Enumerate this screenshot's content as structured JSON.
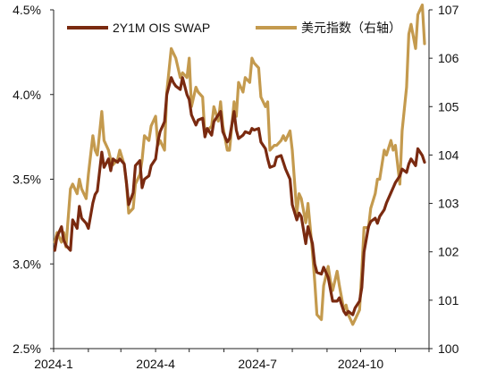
{
  "chart_data": {
    "type": "line",
    "title": "",
    "xlabel": "",
    "ylabel_left": "",
    "ylabel_right": "",
    "x_ticks": [
      "2024-1",
      "2024-4",
      "2024-7",
      "2024-10"
    ],
    "y_left_ticks": [
      "2.5%",
      "3.0%",
      "3.5%",
      "4.0%",
      "4.5%"
    ],
    "y_right_ticks": [
      "100",
      "101",
      "102",
      "103",
      "104",
      "105",
      "106",
      "107"
    ],
    "ylim_left": [
      2.5,
      4.5
    ],
    "ylim_right": [
      100,
      107
    ],
    "grid": false,
    "legend_position": "top",
    "colors": {
      "ois": "#7A2A10",
      "dxy": "#C49A4E",
      "axis": "#222222"
    },
    "series": [
      {
        "name": "2Y1M OIS SWAP",
        "axis": "left",
        "points": [
          [
            "2024-01-02",
            3.08
          ],
          [
            "2024-01-04",
            3.16
          ],
          [
            "2024-01-08",
            3.22
          ],
          [
            "2024-01-10",
            3.14
          ],
          [
            "2024-01-12",
            3.11
          ],
          [
            "2024-01-16",
            3.08
          ],
          [
            "2024-01-18",
            3.26
          ],
          [
            "2024-01-22",
            3.21
          ],
          [
            "2024-01-24",
            3.34
          ],
          [
            "2024-01-26",
            3.27
          ],
          [
            "2024-01-30",
            3.24
          ],
          [
            "2024-02-01",
            3.21
          ],
          [
            "2024-02-05",
            3.36
          ],
          [
            "2024-02-07",
            3.41
          ],
          [
            "2024-02-09",
            3.43
          ],
          [
            "2024-02-13",
            3.66
          ],
          [
            "2024-02-15",
            3.57
          ],
          [
            "2024-02-19",
            3.62
          ],
          [
            "2024-02-21",
            3.55
          ],
          [
            "2024-02-23",
            3.62
          ],
          [
            "2024-02-27",
            3.6
          ],
          [
            "2024-02-29",
            3.62
          ],
          [
            "2024-03-04",
            3.59
          ],
          [
            "2024-03-06",
            3.48
          ],
          [
            "2024-03-08",
            3.35
          ],
          [
            "2024-03-12",
            3.42
          ],
          [
            "2024-03-14",
            3.58
          ],
          [
            "2024-03-18",
            3.61
          ],
          [
            "2024-03-20",
            3.45
          ],
          [
            "2024-03-22",
            3.5
          ],
          [
            "2024-03-26",
            3.52
          ],
          [
            "2024-03-28",
            3.58
          ],
          [
            "2024-04-01",
            3.62
          ],
          [
            "2024-04-03",
            3.72
          ],
          [
            "2024-04-05",
            3.78
          ],
          [
            "2024-04-09",
            3.84
          ],
          [
            "2024-04-11",
            4.0
          ],
          [
            "2024-04-15",
            4.1
          ],
          [
            "2024-04-17",
            4.07
          ],
          [
            "2024-04-19",
            4.05
          ],
          [
            "2024-04-23",
            4.03
          ],
          [
            "2024-04-25",
            4.1
          ],
          [
            "2024-04-29",
            4.0
          ],
          [
            "2024-05-01",
            3.97
          ],
          [
            "2024-05-03",
            3.88
          ],
          [
            "2024-05-07",
            3.82
          ],
          [
            "2024-05-09",
            3.85
          ],
          [
            "2024-05-13",
            3.86
          ],
          [
            "2024-05-15",
            3.75
          ],
          [
            "2024-05-17",
            3.8
          ],
          [
            "2024-05-21",
            3.76
          ],
          [
            "2024-05-23",
            3.84
          ],
          [
            "2024-05-27",
            3.88
          ],
          [
            "2024-05-29",
            3.9
          ],
          [
            "2024-05-31",
            3.78
          ],
          [
            "2024-06-04",
            3.72
          ],
          [
            "2024-06-06",
            3.74
          ],
          [
            "2024-06-10",
            3.9
          ],
          [
            "2024-06-12",
            3.79
          ],
          [
            "2024-06-14",
            3.74
          ],
          [
            "2024-06-18",
            3.76
          ],
          [
            "2024-06-20",
            3.78
          ],
          [
            "2024-06-24",
            3.77
          ],
          [
            "2024-06-26",
            3.8
          ],
          [
            "2024-06-28",
            3.79
          ],
          [
            "2024-07-02",
            3.8
          ],
          [
            "2024-07-04",
            3.72
          ],
          [
            "2024-07-08",
            3.68
          ],
          [
            "2024-07-10",
            3.62
          ],
          [
            "2024-07-12",
            3.57
          ],
          [
            "2024-07-16",
            3.58
          ],
          [
            "2024-07-18",
            3.63
          ],
          [
            "2024-07-22",
            3.64
          ],
          [
            "2024-07-24",
            3.6
          ],
          [
            "2024-07-26",
            3.56
          ],
          [
            "2024-07-30",
            3.5
          ],
          [
            "2024-08-01",
            3.35
          ],
          [
            "2024-08-05",
            3.26
          ],
          [
            "2024-08-07",
            3.3
          ],
          [
            "2024-08-09",
            3.28
          ],
          [
            "2024-08-13",
            3.12
          ],
          [
            "2024-08-15",
            3.22
          ],
          [
            "2024-08-19",
            3.12
          ],
          [
            "2024-08-21",
            3.0
          ],
          [
            "2024-08-23",
            2.95
          ],
          [
            "2024-08-27",
            2.94
          ],
          [
            "2024-08-29",
            2.98
          ],
          [
            "2024-09-02",
            2.92
          ],
          [
            "2024-09-04",
            2.85
          ],
          [
            "2024-09-06",
            2.78
          ],
          [
            "2024-09-10",
            2.78
          ],
          [
            "2024-09-12",
            2.8
          ],
          [
            "2024-09-16",
            2.72
          ],
          [
            "2024-09-18",
            2.7
          ],
          [
            "2024-09-20",
            2.72
          ],
          [
            "2024-09-24",
            2.7
          ],
          [
            "2024-09-26",
            2.74
          ],
          [
            "2024-09-30",
            2.78
          ],
          [
            "2024-10-02",
            2.86
          ],
          [
            "2024-10-04",
            3.07
          ],
          [
            "2024-10-08",
            3.22
          ],
          [
            "2024-10-10",
            3.25
          ],
          [
            "2024-10-14",
            3.27
          ],
          [
            "2024-10-16",
            3.24
          ],
          [
            "2024-10-18",
            3.28
          ],
          [
            "2024-10-22",
            3.32
          ],
          [
            "2024-10-24",
            3.36
          ],
          [
            "2024-10-28",
            3.42
          ],
          [
            "2024-10-30",
            3.45
          ],
          [
            "2024-11-01",
            3.48
          ],
          [
            "2024-11-05",
            3.52
          ],
          [
            "2024-11-07",
            3.56
          ],
          [
            "2024-11-11",
            3.54
          ],
          [
            "2024-11-13",
            3.59
          ],
          [
            "2024-11-15",
            3.62
          ],
          [
            "2024-11-19",
            3.58
          ],
          [
            "2024-11-21",
            3.68
          ],
          [
            "2024-11-25",
            3.64
          ],
          [
            "2024-11-27",
            3.6
          ]
        ]
      },
      {
        "name": "美元指数（右轴）",
        "axis": "right",
        "points": [
          [
            "2024-01-02",
            102.2
          ],
          [
            "2024-01-04",
            102.4
          ],
          [
            "2024-01-08",
            102.2
          ],
          [
            "2024-01-10",
            102.4
          ],
          [
            "2024-01-12",
            102.1
          ],
          [
            "2024-01-16",
            103.3
          ],
          [
            "2024-01-18",
            103.4
          ],
          [
            "2024-01-22",
            103.2
          ],
          [
            "2024-01-24",
            103.5
          ],
          [
            "2024-01-26",
            103.3
          ],
          [
            "2024-01-30",
            103.1
          ],
          [
            "2024-02-01",
            103.6
          ],
          [
            "2024-02-05",
            104.4
          ],
          [
            "2024-02-07",
            104.1
          ],
          [
            "2024-02-09",
            104.0
          ],
          [
            "2024-02-13",
            104.9
          ],
          [
            "2024-02-15",
            104.3
          ],
          [
            "2024-02-19",
            104.1
          ],
          [
            "2024-02-21",
            103.9
          ],
          [
            "2024-02-23",
            103.8
          ],
          [
            "2024-02-27",
            103.9
          ],
          [
            "2024-02-29",
            104.1
          ],
          [
            "2024-03-04",
            103.8
          ],
          [
            "2024-03-06",
            103.4
          ],
          [
            "2024-03-08",
            102.8
          ],
          [
            "2024-03-12",
            102.9
          ],
          [
            "2024-03-14",
            103.4
          ],
          [
            "2024-03-18",
            103.6
          ],
          [
            "2024-03-20",
            103.9
          ],
          [
            "2024-03-22",
            104.4
          ],
          [
            "2024-03-26",
            104.3
          ],
          [
            "2024-03-28",
            104.6
          ],
          [
            "2024-04-01",
            104.8
          ],
          [
            "2024-04-03",
            104.2
          ],
          [
            "2024-04-05",
            104.3
          ],
          [
            "2024-04-09",
            104.1
          ],
          [
            "2024-04-11",
            105.3
          ],
          [
            "2024-04-15",
            106.2
          ],
          [
            "2024-04-17",
            106.1
          ],
          [
            "2024-04-19",
            106.0
          ],
          [
            "2024-04-23",
            105.6
          ],
          [
            "2024-04-25",
            105.7
          ],
          [
            "2024-04-29",
            105.6
          ],
          [
            "2024-05-01",
            106.0
          ],
          [
            "2024-05-03",
            105.0
          ],
          [
            "2024-05-07",
            105.4
          ],
          [
            "2024-05-09",
            105.3
          ],
          [
            "2024-05-13",
            105.2
          ],
          [
            "2024-05-15",
            104.4
          ],
          [
            "2024-05-17",
            104.5
          ],
          [
            "2024-05-21",
            104.6
          ],
          [
            "2024-05-23",
            105.0
          ],
          [
            "2024-05-27",
            104.7
          ],
          [
            "2024-05-29",
            105.1
          ],
          [
            "2024-05-31",
            104.6
          ],
          [
            "2024-06-04",
            104.1
          ],
          [
            "2024-06-06",
            104.1
          ],
          [
            "2024-06-10",
            105.1
          ],
          [
            "2024-06-12",
            104.8
          ],
          [
            "2024-06-14",
            105.5
          ],
          [
            "2024-06-18",
            105.3
          ],
          [
            "2024-06-20",
            105.6
          ],
          [
            "2024-06-24",
            105.5
          ],
          [
            "2024-06-26",
            106.0
          ],
          [
            "2024-06-28",
            105.9
          ],
          [
            "2024-07-02",
            105.8
          ],
          [
            "2024-07-04",
            105.2
          ],
          [
            "2024-07-08",
            105.0
          ],
          [
            "2024-07-10",
            105.1
          ],
          [
            "2024-07-12",
            104.1
          ],
          [
            "2024-07-16",
            104.2
          ],
          [
            "2024-07-18",
            104.2
          ],
          [
            "2024-07-22",
            104.3
          ],
          [
            "2024-07-24",
            104.4
          ],
          [
            "2024-07-26",
            104.3
          ],
          [
            "2024-07-30",
            104.5
          ],
          [
            "2024-08-01",
            104.1
          ],
          [
            "2024-08-05",
            102.8
          ],
          [
            "2024-08-07",
            103.2
          ],
          [
            "2024-08-09",
            103.1
          ],
          [
            "2024-08-13",
            102.6
          ],
          [
            "2024-08-15",
            103.0
          ],
          [
            "2024-08-19",
            102.0
          ],
          [
            "2024-08-21",
            101.4
          ],
          [
            "2024-08-23",
            100.7
          ],
          [
            "2024-08-27",
            100.6
          ],
          [
            "2024-08-29",
            101.3
          ],
          [
            "2024-09-02",
            101.7
          ],
          [
            "2024-09-04",
            101.4
          ],
          [
            "2024-09-06",
            101.2
          ],
          [
            "2024-09-10",
            101.6
          ],
          [
            "2024-09-12",
            101.3
          ],
          [
            "2024-09-16",
            100.8
          ],
          [
            "2024-09-18",
            100.9
          ],
          [
            "2024-09-20",
            100.7
          ],
          [
            "2024-09-24",
            100.5
          ],
          [
            "2024-09-26",
            100.6
          ],
          [
            "2024-09-30",
            100.8
          ],
          [
            "2024-10-02",
            101.6
          ],
          [
            "2024-10-04",
            102.5
          ],
          [
            "2024-10-08",
            102.5
          ],
          [
            "2024-10-10",
            102.9
          ],
          [
            "2024-10-14",
            103.2
          ],
          [
            "2024-10-16",
            103.5
          ],
          [
            "2024-10-18",
            103.5
          ],
          [
            "2024-10-22",
            104.1
          ],
          [
            "2024-10-24",
            104.0
          ],
          [
            "2024-10-28",
            104.3
          ],
          [
            "2024-10-30",
            104.1
          ],
          [
            "2024-11-01",
            104.2
          ],
          [
            "2024-11-05",
            103.4
          ],
          [
            "2024-11-07",
            104.5
          ],
          [
            "2024-11-11",
            105.4
          ],
          [
            "2024-11-13",
            106.5
          ],
          [
            "2024-11-15",
            106.7
          ],
          [
            "2024-11-19",
            106.2
          ],
          [
            "2024-11-21",
            106.9
          ],
          [
            "2024-11-25",
            107.1
          ],
          [
            "2024-11-27",
            106.3
          ]
        ]
      }
    ]
  }
}
